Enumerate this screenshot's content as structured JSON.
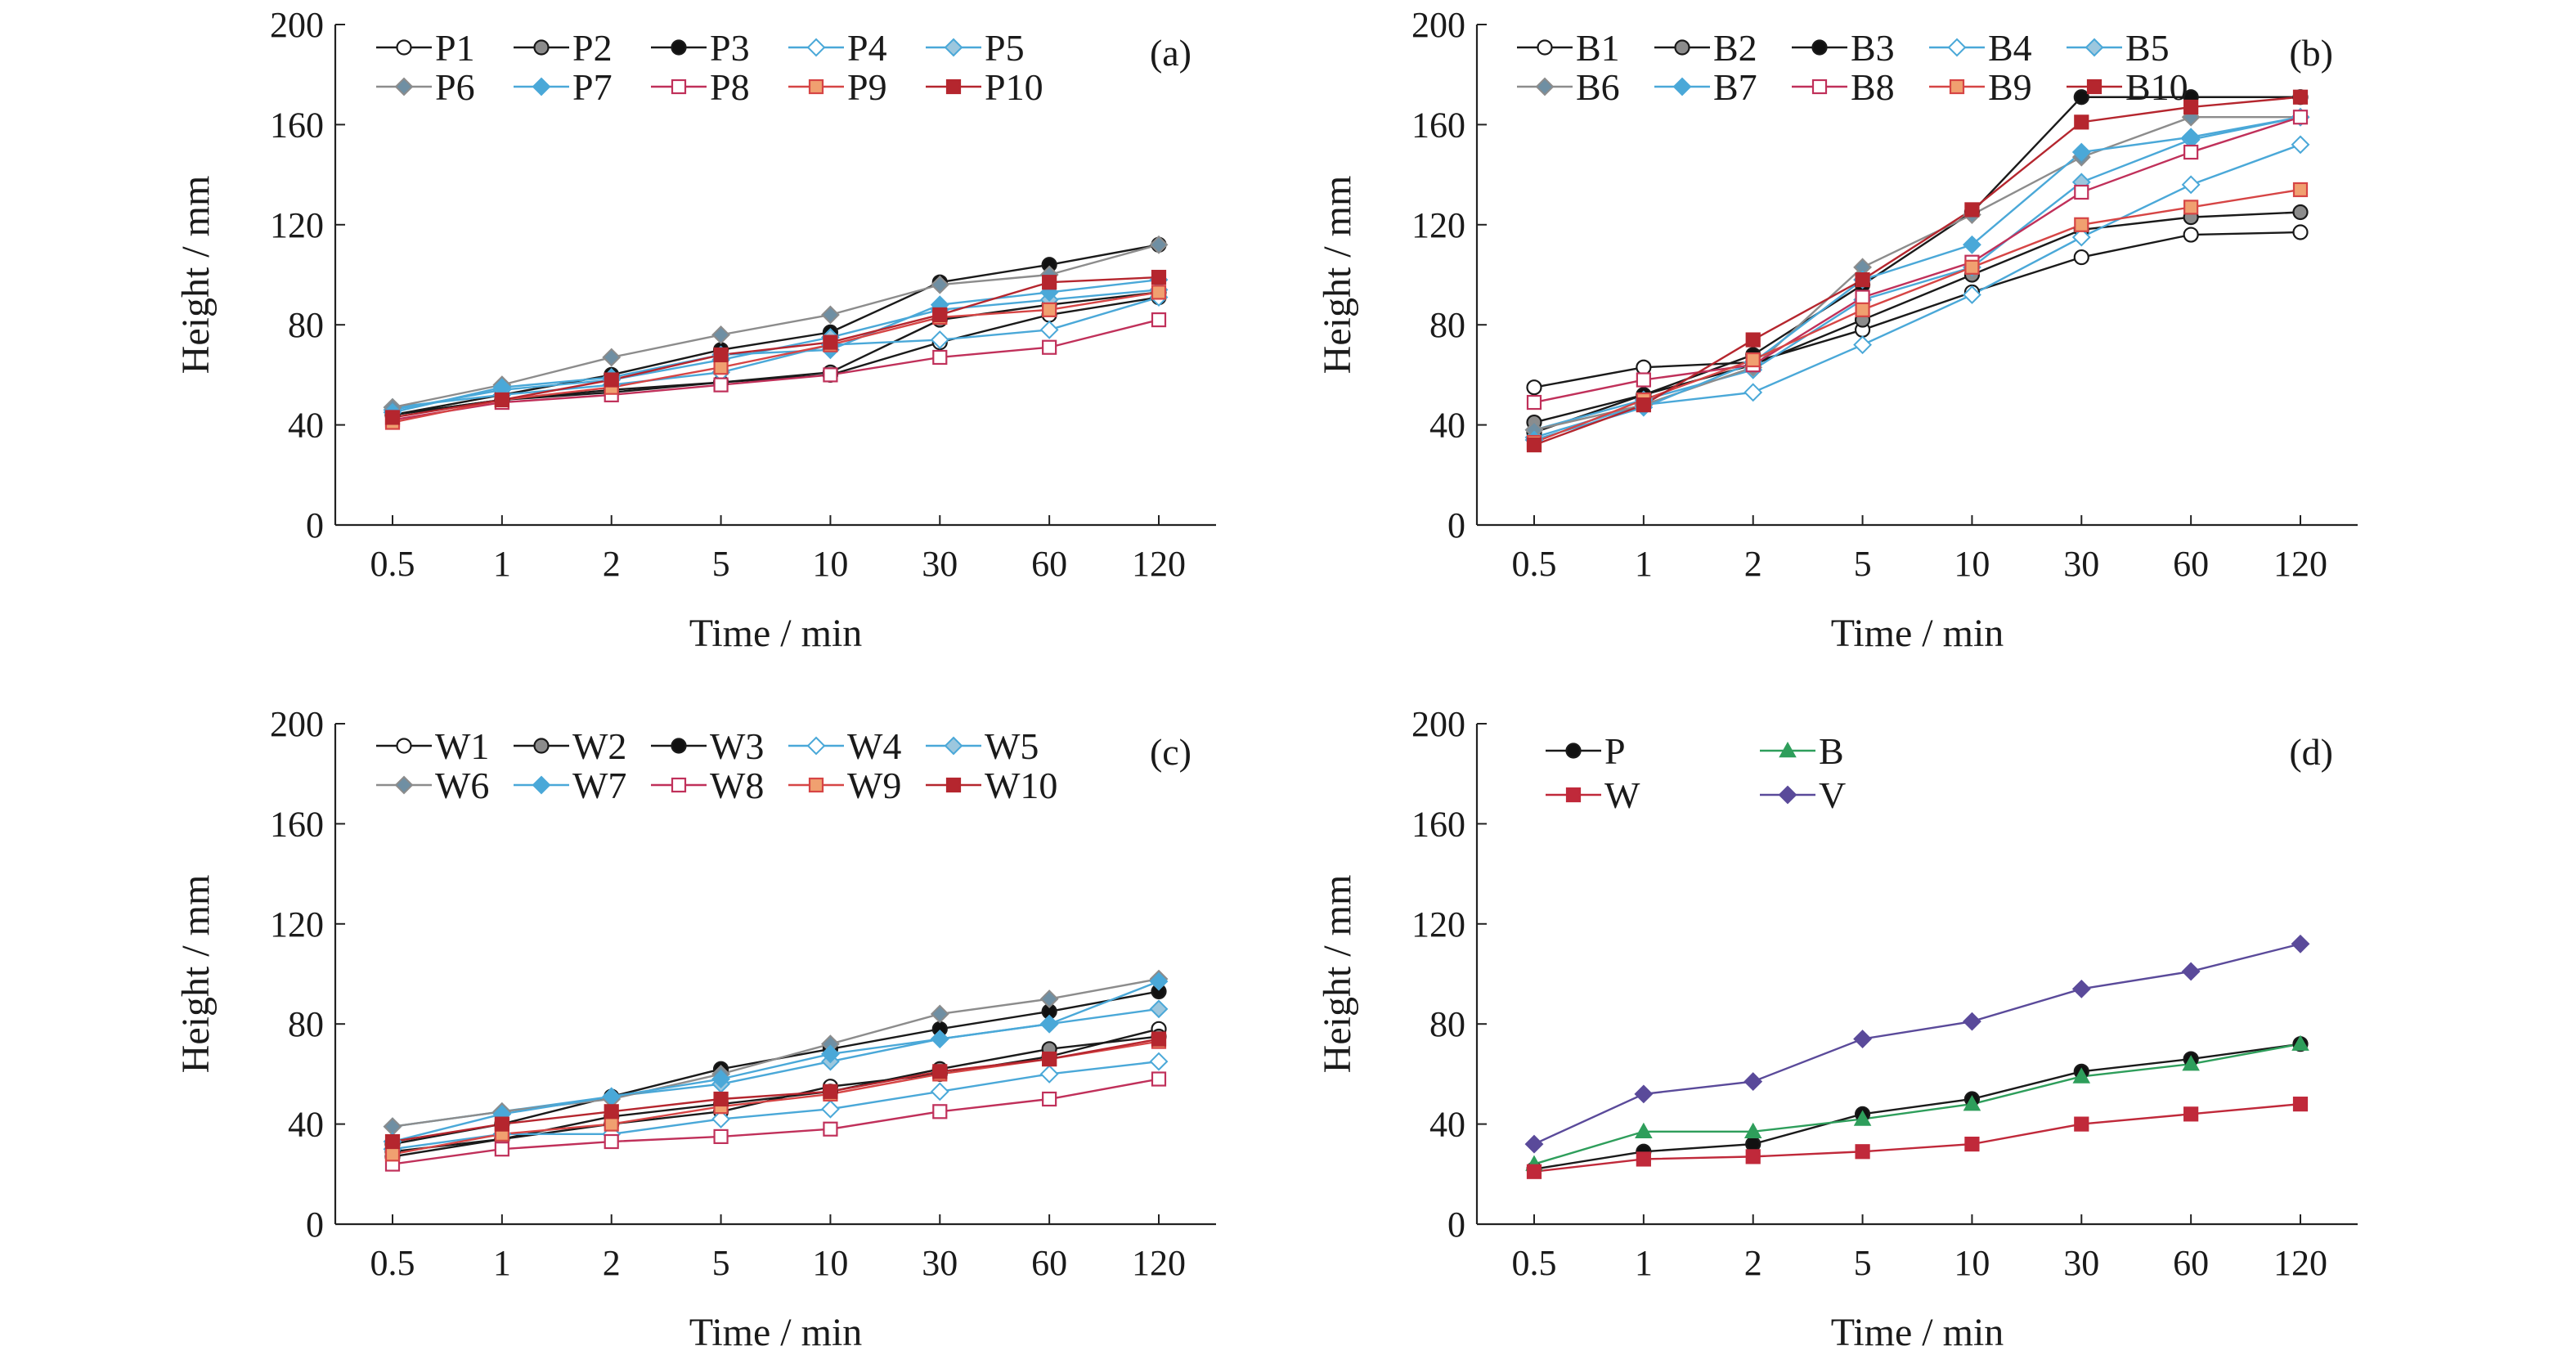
{
  "chart_data": [
    {
      "type": "line",
      "panel_label": "(a)",
      "xlabel": "Time / min",
      "ylabel": "Height / mm",
      "categories": [
        "0.5",
        "1",
        "2",
        "5",
        "10",
        "30",
        "60",
        "120"
      ],
      "ylim": [
        0,
        200
      ],
      "yticks": [
        "0",
        "40",
        "80",
        "120",
        "160",
        "200"
      ],
      "legend_position": "top-left",
      "series": [
        {
          "name": "P1",
          "color": "#1a1a1a",
          "marker": "circle-open",
          "values": [
            44,
            50,
            53,
            57,
            60,
            73,
            84,
            91
          ]
        },
        {
          "name": "P2",
          "color": "#1a1a1a",
          "marker": "circle-gray",
          "values": [
            44,
            50,
            54,
            57,
            61,
            82,
            88,
            93
          ]
        },
        {
          "name": "P3",
          "color": "#1a1a1a",
          "marker": "circle-filled",
          "values": [
            44,
            52,
            60,
            70,
            77,
            97,
            104,
            112
          ]
        },
        {
          "name": "P4",
          "color": "#4aa8d8",
          "marker": "diamond-open",
          "values": [
            47,
            52,
            56,
            61,
            72,
            74,
            78,
            91
          ]
        },
        {
          "name": "P5",
          "color": "#4aa8d8",
          "marker": "diamond-gray",
          "values": [
            46,
            54,
            58,
            66,
            75,
            86,
            90,
            94
          ]
        },
        {
          "name": "P6",
          "color": "#8c8c8c",
          "marker": "diamond-dkgray",
          "values": [
            47,
            56,
            67,
            76,
            84,
            96,
            100,
            112
          ]
        },
        {
          "name": "P7",
          "color": "#4aa8d8",
          "marker": "diamond-filled",
          "values": [
            45,
            55,
            59,
            68,
            70,
            88,
            93,
            98
          ]
        },
        {
          "name": "P8",
          "color": "#c0305a",
          "marker": "square-open",
          "values": [
            42,
            49,
            52,
            56,
            60,
            67,
            71,
            82
          ]
        },
        {
          "name": "P9",
          "color": "#d64545",
          "marker": "square-orange",
          "values": [
            41,
            50,
            55,
            63,
            72,
            83,
            86,
            93
          ]
        },
        {
          "name": "P10",
          "color": "#b5262e",
          "marker": "square-filled",
          "values": [
            43,
            50,
            58,
            68,
            73,
            84,
            97,
            99
          ]
        }
      ]
    },
    {
      "type": "line",
      "panel_label": "(b)",
      "xlabel": "Time / min",
      "ylabel": "Height / mm",
      "categories": [
        "0.5",
        "1",
        "2",
        "5",
        "10",
        "30",
        "60",
        "120"
      ],
      "ylim": [
        0,
        200
      ],
      "yticks": [
        "0",
        "40",
        "80",
        "120",
        "160",
        "200"
      ],
      "legend_position": "top-left",
      "series": [
        {
          "name": "B1",
          "color": "#1a1a1a",
          "marker": "circle-open",
          "values": [
            55,
            63,
            65,
            78,
            93,
            107,
            116,
            117
          ]
        },
        {
          "name": "B2",
          "color": "#1a1a1a",
          "marker": "circle-gray",
          "values": [
            41,
            52,
            64,
            82,
            100,
            118,
            123,
            125
          ]
        },
        {
          "name": "B3",
          "color": "#1a1a1a",
          "marker": "circle-filled",
          "values": [
            37,
            52,
            68,
            96,
            125,
            171,
            171,
            171
          ]
        },
        {
          "name": "B4",
          "color": "#4aa8d8",
          "marker": "diamond-open",
          "values": [
            35,
            48,
            53,
            72,
            92,
            115,
            136,
            152
          ]
        },
        {
          "name": "B5",
          "color": "#4aa8d8",
          "marker": "diamond-gray",
          "values": [
            38,
            50,
            62,
            90,
            103,
            137,
            154,
            163
          ]
        },
        {
          "name": "B6",
          "color": "#8c8c8c",
          "marker": "diamond-dkgray",
          "values": [
            38,
            48,
            63,
            103,
            124,
            147,
            163,
            163
          ]
        },
        {
          "name": "B7",
          "color": "#4aa8d8",
          "marker": "diamond-filled",
          "values": [
            34,
            47,
            65,
            98,
            112,
            149,
            155,
            163
          ]
        },
        {
          "name": "B8",
          "color": "#c0305a",
          "marker": "square-open",
          "values": [
            49,
            58,
            64,
            91,
            105,
            133,
            149,
            163
          ]
        },
        {
          "name": "B9",
          "color": "#d64545",
          "marker": "square-orange",
          "values": [
            33,
            50,
            66,
            86,
            103,
            120,
            127,
            134
          ]
        },
        {
          "name": "B10",
          "color": "#b5262e",
          "marker": "square-filled",
          "values": [
            32,
            48,
            74,
            98,
            126,
            161,
            167,
            171
          ]
        }
      ]
    },
    {
      "type": "line",
      "panel_label": "(c)",
      "xlabel": "Time / min",
      "ylabel": "Height / mm",
      "categories": [
        "0.5",
        "1",
        "2",
        "5",
        "10",
        "30",
        "60",
        "120"
      ],
      "ylim": [
        0,
        200
      ],
      "yticks": [
        "0",
        "40",
        "80",
        "120",
        "160",
        "200"
      ],
      "legend_position": "top-left",
      "series": [
        {
          "name": "W1",
          "color": "#1a1a1a",
          "marker": "circle-open",
          "values": [
            27,
            34,
            40,
            45,
            55,
            60,
            67,
            78
          ]
        },
        {
          "name": "W2",
          "color": "#1a1a1a",
          "marker": "circle-gray",
          "values": [
            29,
            34,
            43,
            48,
            53,
            62,
            70,
            75
          ]
        },
        {
          "name": "W3",
          "color": "#1a1a1a",
          "marker": "circle-filled",
          "values": [
            32,
            40,
            51,
            62,
            70,
            78,
            85,
            93
          ]
        },
        {
          "name": "W4",
          "color": "#4aa8d8",
          "marker": "diamond-open",
          "values": [
            30,
            36,
            36,
            42,
            46,
            53,
            60,
            65
          ]
        },
        {
          "name": "W5",
          "color": "#4aa8d8",
          "marker": "diamond-gray",
          "values": [
            39,
            45,
            51,
            56,
            65,
            74,
            80,
            86
          ]
        },
        {
          "name": "W6",
          "color": "#8c8c8c",
          "marker": "diamond-dkgray",
          "values": [
            39,
            45,
            50,
            60,
            72,
            84,
            90,
            98
          ]
        },
        {
          "name": "W7",
          "color": "#4aa8d8",
          "marker": "diamond-filled",
          "values": [
            33,
            44,
            51,
            58,
            68,
            74,
            80,
            97
          ]
        },
        {
          "name": "W8",
          "color": "#c0305a",
          "marker": "square-open",
          "values": [
            24,
            30,
            33,
            35,
            38,
            45,
            50,
            58
          ]
        },
        {
          "name": "W9",
          "color": "#d64545",
          "marker": "square-orange",
          "values": [
            28,
            36,
            40,
            47,
            52,
            60,
            66,
            73
          ]
        },
        {
          "name": "W10",
          "color": "#b5262e",
          "marker": "square-filled",
          "values": [
            33,
            40,
            45,
            50,
            53,
            61,
            66,
            74
          ]
        }
      ]
    },
    {
      "type": "line",
      "panel_label": "(d)",
      "xlabel": "Time / min",
      "ylabel": "Height / mm",
      "categories": [
        "0.5",
        "1",
        "2",
        "5",
        "10",
        "30",
        "60",
        "120"
      ],
      "ylim": [
        0,
        200
      ],
      "yticks": [
        "0",
        "40",
        "80",
        "120",
        "160",
        "200"
      ],
      "legend_position": "top-left",
      "legend_columns": 2,
      "series": [
        {
          "name": "P",
          "color": "#1a1a1a",
          "marker": "circle-filled",
          "values": [
            22,
            29,
            32,
            44,
            50,
            61,
            66,
            72
          ]
        },
        {
          "name": "B",
          "color": "#2e9e5b",
          "marker": "triangle-filled",
          "values": [
            24,
            37,
            37,
            42,
            48,
            59,
            64,
            72
          ]
        },
        {
          "name": "W",
          "color": "#c0293a",
          "marker": "square-filled",
          "values": [
            21,
            26,
            27,
            29,
            32,
            40,
            44,
            48
          ]
        },
        {
          "name": "V",
          "color": "#5a4a9a",
          "marker": "diamond-purple",
          "values": [
            32,
            52,
            57,
            74,
            81,
            94,
            101,
            112
          ]
        }
      ]
    }
  ]
}
